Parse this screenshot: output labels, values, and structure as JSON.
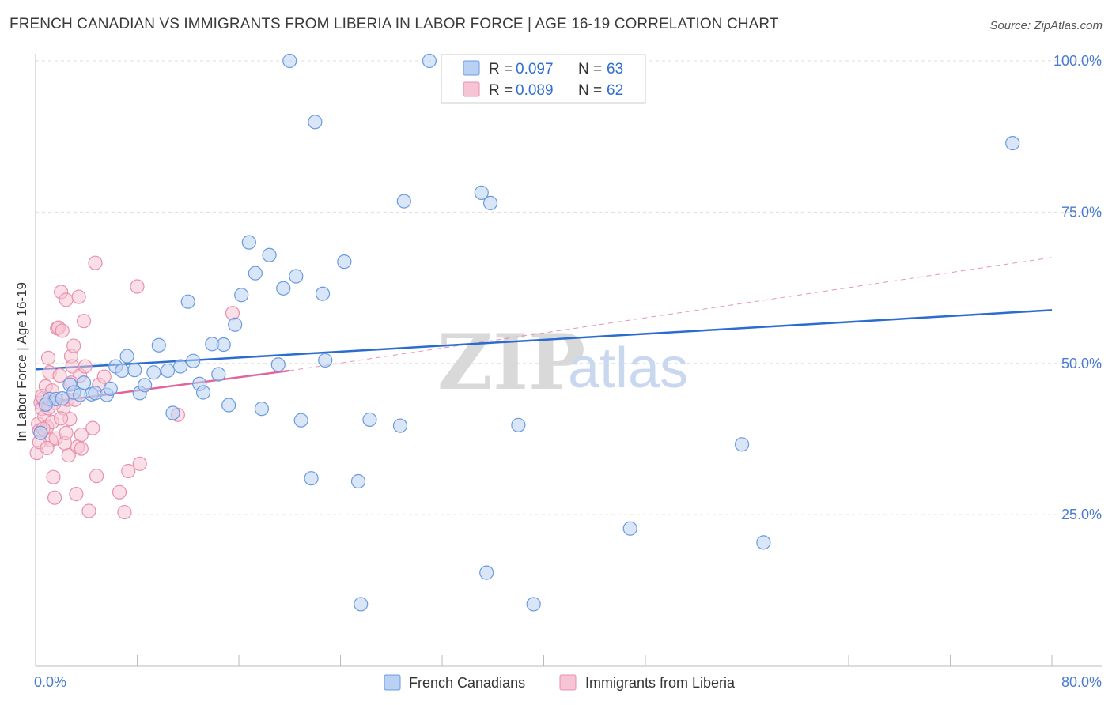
{
  "header": {
    "title": "FRENCH CANADIAN VS IMMIGRANTS FROM LIBERIA IN LABOR FORCE | AGE 16-19 CORRELATION CHART",
    "source": "Source: ZipAtlas.com"
  },
  "colors": {
    "blue": "#6a9ae0",
    "blue_fill": "#b9d2f3",
    "blue_line": "#2a6ccf",
    "pink": "#e891ae",
    "pink_fill": "#f6c4d4",
    "pink_line": "#e0659a",
    "axis_label": "#4a7bd0",
    "grid": "#dddddd"
  },
  "watermark": {
    "zip": "ZIP",
    "atlas": "atlas"
  },
  "legend": {
    "rows": [
      {
        "r_label": "R = ",
        "r_value": "0.097",
        "n_label": "N = ",
        "n_value": "63"
      },
      {
        "r_label": "R = ",
        "r_value": "0.089",
        "n_label": "N = ",
        "n_value": "62"
      }
    ]
  },
  "bottom_legend": {
    "items": [
      {
        "label": "French Canadians"
      },
      {
        "label": "Immigrants from Liberia"
      }
    ]
  },
  "chart_data": {
    "type": "scatter",
    "title": "FRENCH CANADIAN VS IMMIGRANTS FROM LIBERIA IN LABOR FORCE | AGE 16-19 CORRELATION CHART",
    "xlabel": "",
    "ylabel": "In Labor Force | Age 16-19",
    "xlim": [
      0,
      80
    ],
    "ylim": [
      0,
      102
    ],
    "x_tick_labels": [
      "0.0%",
      "80.0%"
    ],
    "y_ticks": [
      25,
      50,
      75,
      100
    ],
    "y_tick_labels": [
      "25.0%",
      "50.0%",
      "75.0%",
      "100.0%"
    ],
    "grid": true,
    "series": [
      {
        "name": "French Canadians",
        "r": 0.097,
        "n": 63,
        "trend": {
          "x": [
            0,
            80
          ],
          "y": [
            49.0,
            58.8
          ]
        },
        "points": [
          [
            0.4,
            38.5
          ],
          [
            1.1,
            44.1
          ],
          [
            1.6,
            44.1
          ],
          [
            2.1,
            44.2
          ],
          [
            2.7,
            46.5
          ],
          [
            3.0,
            45.2
          ],
          [
            3.5,
            44.8
          ],
          [
            3.8,
            46.8
          ],
          [
            4.4,
            44.9
          ],
          [
            4.7,
            45.1
          ],
          [
            5.6,
            44.8
          ],
          [
            5.9,
            45.8
          ],
          [
            6.3,
            49.5
          ],
          [
            6.8,
            48.8
          ],
          [
            7.2,
            51.2
          ],
          [
            7.8,
            48.9
          ],
          [
            8.2,
            45.1
          ],
          [
            8.6,
            46.4
          ],
          [
            9.7,
            53.0
          ],
          [
            9.3,
            48.5
          ],
          [
            10.4,
            48.8
          ],
          [
            10.8,
            41.8
          ],
          [
            11.4,
            49.5
          ],
          [
            12.0,
            60.2
          ],
          [
            12.4,
            50.4
          ],
          [
            12.9,
            46.6
          ],
          [
            13.2,
            45.2
          ],
          [
            13.9,
            53.2
          ],
          [
            14.4,
            48.2
          ],
          [
            14.8,
            53.1
          ],
          [
            15.2,
            43.1
          ],
          [
            15.7,
            56.4
          ],
          [
            16.2,
            61.3
          ],
          [
            16.8,
            70.0
          ],
          [
            17.3,
            64.9
          ],
          [
            17.8,
            42.5
          ],
          [
            18.4,
            67.9
          ],
          [
            19.1,
            49.8
          ],
          [
            19.5,
            62.4
          ],
          [
            20.0,
            100.0
          ],
          [
            20.5,
            64.4
          ],
          [
            20.9,
            40.6
          ],
          [
            21.7,
            31.0
          ],
          [
            22.0,
            89.9
          ],
          [
            22.6,
            61.5
          ],
          [
            22.8,
            50.5
          ],
          [
            24.3,
            66.8
          ],
          [
            25.4,
            30.5
          ],
          [
            25.6,
            10.2
          ],
          [
            26.3,
            40.7
          ],
          [
            28.7,
            39.7
          ],
          [
            29.0,
            76.8
          ],
          [
            31.0,
            100.0
          ],
          [
            35.1,
            78.2
          ],
          [
            35.5,
            15.4
          ],
          [
            35.8,
            76.5
          ],
          [
            38.0,
            39.8
          ],
          [
            39.2,
            10.2
          ],
          [
            46.8,
            22.7
          ],
          [
            55.6,
            36.6
          ],
          [
            57.3,
            20.4
          ],
          [
            76.9,
            86.4
          ],
          [
            0.8,
            43.2
          ]
        ]
      },
      {
        "name": "Immigrants from Liberia",
        "r": 0.089,
        "n": 62,
        "trend": {
          "x": [
            0,
            20
          ],
          "y": [
            43.3,
            48.8
          ]
        },
        "trend_dashed": {
          "x": [
            20,
            80
          ],
          "y": [
            48.8,
            67.5
          ]
        },
        "points": [
          [
            0.1,
            35.2
          ],
          [
            0.2,
            40.0
          ],
          [
            0.3,
            38.9
          ],
          [
            0.4,
            43.5
          ],
          [
            0.5,
            42.5
          ],
          [
            0.6,
            44.2
          ],
          [
            0.7,
            41.2
          ],
          [
            0.8,
            46.2
          ],
          [
            0.9,
            39.5
          ],
          [
            1.0,
            42.6
          ],
          [
            1.1,
            48.5
          ],
          [
            1.2,
            37.3
          ],
          [
            1.3,
            40.3
          ],
          [
            1.4,
            31.2
          ],
          [
            1.5,
            27.8
          ],
          [
            1.6,
            37.6
          ],
          [
            1.7,
            55.8
          ],
          [
            1.8,
            55.9
          ],
          [
            1.9,
            48.0
          ],
          [
            2.0,
            61.8
          ],
          [
            2.1,
            55.4
          ],
          [
            2.2,
            42.6
          ],
          [
            2.3,
            36.8
          ],
          [
            2.4,
            60.5
          ],
          [
            2.5,
            44.0
          ],
          [
            2.6,
            34.8
          ],
          [
            2.7,
            40.8
          ],
          [
            2.8,
            51.2
          ],
          [
            2.9,
            49.5
          ],
          [
            3.0,
            52.9
          ],
          [
            3.1,
            44.0
          ],
          [
            3.2,
            28.4
          ],
          [
            3.3,
            36.2
          ],
          [
            3.4,
            61.0
          ],
          [
            3.5,
            48.0
          ],
          [
            3.6,
            35.9
          ],
          [
            3.8,
            57.0
          ],
          [
            3.9,
            49.5
          ],
          [
            4.2,
            25.6
          ],
          [
            4.5,
            39.3
          ],
          [
            4.7,
            66.6
          ],
          [
            4.8,
            31.4
          ],
          [
            5.0,
            46.5
          ],
          [
            5.4,
            47.8
          ],
          [
            6.6,
            28.7
          ],
          [
            7.0,
            25.4
          ],
          [
            7.3,
            32.2
          ],
          [
            8.0,
            62.7
          ],
          [
            8.2,
            33.4
          ],
          [
            11.2,
            41.5
          ],
          [
            15.5,
            58.3
          ],
          [
            0.3,
            37.0
          ],
          [
            0.6,
            39.2
          ],
          [
            1.0,
            50.9
          ],
          [
            1.3,
            45.5
          ],
          [
            2.0,
            40.9
          ],
          [
            2.4,
            38.5
          ],
          [
            0.5,
            44.6
          ],
          [
            0.9,
            36.0
          ],
          [
            1.5,
            43.5
          ],
          [
            2.8,
            46.8
          ],
          [
            3.6,
            38.2
          ]
        ]
      }
    ]
  }
}
